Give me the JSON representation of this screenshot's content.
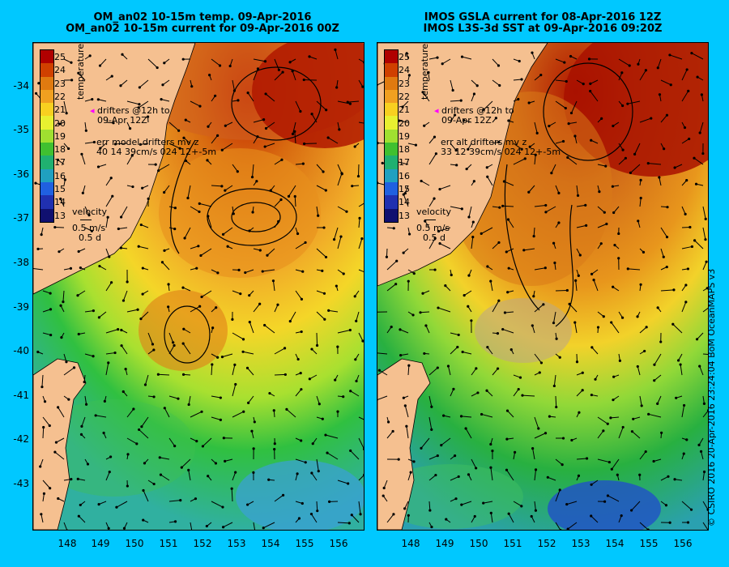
{
  "left_title": [
    "OM_an02 10-15m temp. 09-Apr-2016",
    "OM_an02 10-15m current for 09-Apr-2016 00Z"
  ],
  "right_title": [
    "IMOS GSLA current for 08-Apr-2016 12Z",
    "IMOS L3S-3d SST at 09-Apr-2016 09:20Z"
  ],
  "y_ticks": [
    "-34",
    "-35",
    "-36",
    "-37",
    "-38",
    "-39",
    "-40",
    "-41",
    "-42",
    "-43"
  ],
  "x_ticks": [
    "148",
    "149",
    "150",
    "151",
    "152",
    "153",
    "154",
    "155",
    "156"
  ],
  "colorbar": {
    "title": "temperature (°C)",
    "ticks": [
      "25",
      "24",
      "23",
      "22",
      "21",
      "20",
      "19",
      "18",
      "17",
      "16",
      "15",
      "14",
      "13"
    ],
    "colors": [
      "#b00000",
      "#d04000",
      "#e07a10",
      "#f0a020",
      "#f8d020",
      "#e8f030",
      "#a0e030",
      "#40c030",
      "#20b070",
      "#20a0c0",
      "#2060e0",
      "#2030b0",
      "#101070"
    ]
  },
  "left_legend": {
    "drifters": [
      "drifters @12h to",
      "09-Apr 12Z"
    ],
    "err": [
      "err model drifters mv z",
      "40 14 39cm/s 024 12+-5m"
    ],
    "velocity": [
      "velocity",
      "0.5 m/s",
      "0.5 d"
    ]
  },
  "right_legend": {
    "drifters": [
      "drifters @12h to",
      "09-Apr 12Z"
    ],
    "err": [
      "err alt drifters mv z",
      "33 12 39cm/s 024 12+-5m"
    ],
    "velocity": [
      "velocity",
      "0.5 m/s",
      "0.5 d"
    ]
  },
  "credit": "© CSIRO 2016   20-Apr-2016 23:24:04 BoM OceanMAPS v3",
  "colors": {
    "land": "#f5c090",
    "background": "#00c8ff"
  }
}
